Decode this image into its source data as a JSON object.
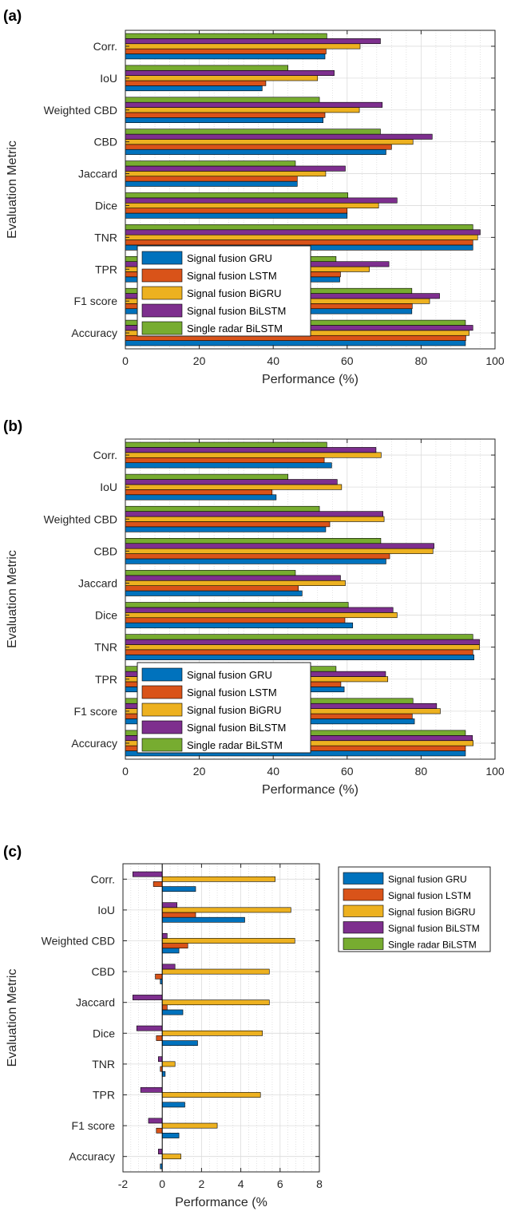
{
  "chart_data": [
    {
      "panel_label": "(a)",
      "type": "bar",
      "orientation": "horizontal",
      "xlabel": "Performance (%)",
      "ylabel": "Evaluation Metric",
      "xlim": [
        0,
        100
      ],
      "xticks": [
        0,
        20,
        40,
        60,
        80,
        100
      ],
      "grid": true,
      "legend_position": "lower-left-inside",
      "categories": [
        "Corr.",
        "IoU",
        "Weighted CBD",
        "CBD",
        "Jaccard",
        "Dice",
        "TNR",
        "TPR",
        "F1 score",
        "Accuracy"
      ],
      "series": [
        {
          "name": "Signal fusion GRU",
          "color": "#0072BD",
          "values": [
            54,
            37,
            53.5,
            70.5,
            46.5,
            60,
            94,
            58,
            77.5,
            92
          ]
        },
        {
          "name": "Signal fusion LSTM",
          "color": "#D95319",
          "values": [
            54.3,
            38,
            54,
            72,
            46.5,
            60,
            94,
            58.2,
            77.6,
            92.1
          ]
        },
        {
          "name": "Signal fusion BiGRU",
          "color": "#EDB120",
          "values": [
            63.5,
            52,
            63.3,
            77.8,
            54.2,
            68.5,
            95.3,
            66,
            82.3,
            93
          ]
        },
        {
          "name": "Signal fusion BiLSTM",
          "color": "#7E2F8E",
          "values": [
            69,
            56.5,
            69.5,
            83,
            59.5,
            73.5,
            96,
            71.3,
            85,
            94
          ]
        },
        {
          "name": "Single radar BiLSTM",
          "color": "#77AC30",
          "values": [
            54.5,
            44,
            52.5,
            69,
            46,
            60.2,
            94,
            57,
            77.5,
            92
          ]
        }
      ]
    },
    {
      "panel_label": "(b)",
      "type": "bar",
      "orientation": "horizontal",
      "xlabel": "Performance (%)",
      "ylabel": "Evaluation Metric",
      "xlim": [
        0,
        100
      ],
      "xticks": [
        0,
        20,
        40,
        60,
        80,
        100
      ],
      "grid": true,
      "legend_position": "lower-left-inside",
      "categories": [
        "Corr.",
        "IoU",
        "Weighted CBD",
        "CBD",
        "Jaccard",
        "Dice",
        "TNR",
        "TPR",
        "F1 score",
        "Accuracy"
      ],
      "series": [
        {
          "name": "Signal fusion GRU",
          "color": "#0072BD",
          "values": [
            55.8,
            40.8,
            54.2,
            70.5,
            47.8,
            61.5,
            94.3,
            59.2,
            78.2,
            92
          ]
        },
        {
          "name": "Signal fusion LSTM",
          "color": "#D95319",
          "values": [
            53.8,
            39.7,
            55.3,
            71.5,
            46.8,
            59.4,
            94,
            58.3,
            77.6,
            92
          ]
        },
        {
          "name": "Signal fusion BiGRU",
          "color": "#EDB120",
          "values": [
            69.2,
            58.5,
            70,
            83.2,
            59.5,
            73.5,
            95.8,
            71,
            85.2,
            94.1
          ]
        },
        {
          "name": "Signal fusion BiLSTM",
          "color": "#7E2F8E",
          "values": [
            67.8,
            57.3,
            69.7,
            83.5,
            58.2,
            72.4,
            95.8,
            70.4,
            84.2,
            93.9
          ]
        },
        {
          "name": "Single radar BiLSTM",
          "color": "#77AC30",
          "values": [
            54.5,
            44,
            52.5,
            69.1,
            46,
            60.3,
            94,
            57,
            77.8,
            92
          ]
        }
      ]
    },
    {
      "panel_label": "(c)",
      "type": "bar",
      "orientation": "horizontal",
      "xlabel": "Performance (%",
      "ylabel": "Evaluation Metric",
      "xlim": [
        -2,
        8
      ],
      "xticks": [
        -2,
        0,
        2,
        4,
        6,
        8
      ],
      "grid": true,
      "legend_position": "outside-top-right",
      "categories": [
        "Corr.",
        "IoU",
        "Weighted CBD",
        "CBD",
        "Jaccard",
        "Dice",
        "TNR",
        "TPR",
        "F1 score",
        "Accuracy"
      ],
      "series": [
        {
          "name": "Signal fusion GRU",
          "color": "#0072BD",
          "values": [
            1.7,
            4.2,
            0.85,
            -0.1,
            1.05,
            1.8,
            0.15,
            1.15,
            0.85,
            -0.1
          ]
        },
        {
          "name": "Signal fusion LSTM",
          "color": "#D95319",
          "values": [
            -0.45,
            1.7,
            1.3,
            -0.35,
            0.25,
            -0.3,
            -0.1,
            0,
            -0.3,
            0
          ]
        },
        {
          "name": "Signal fusion BiGRU",
          "color": "#EDB120",
          "values": [
            5.75,
            6.55,
            6.75,
            5.45,
            5.45,
            5.1,
            0.65,
            5.0,
            2.8,
            0.95
          ]
        },
        {
          "name": "Signal fusion BiLSTM",
          "color": "#7E2F8E",
          "values": [
            -1.5,
            0.75,
            0.25,
            0.65,
            -1.5,
            -1.3,
            -0.2,
            -1.1,
            -0.7,
            -0.2
          ]
        },
        {
          "name": "Single radar BiLSTM",
          "color": "#77AC30",
          "values": [
            0,
            0,
            0,
            0,
            0,
            0,
            0,
            0,
            0,
            0
          ]
        }
      ]
    }
  ]
}
